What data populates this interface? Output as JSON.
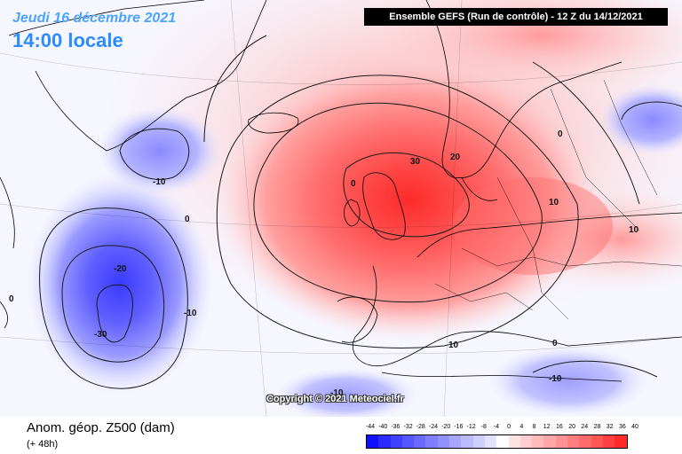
{
  "header": {
    "date": "Jeudi 16 décembre 2021",
    "time": "14:00 locale",
    "model_info": "Ensemble GEFS  (Run de contrôle)  -  12 Z du 14/12/2021"
  },
  "footer": {
    "parameter": "Anom. géop. Z500 (dam)",
    "lead_time": "(+ 48h)",
    "copyright": "Copyright © 2021 Meteociel.fr"
  },
  "legend": {
    "ticks": [
      "-44",
      "-40",
      "-36",
      "-32",
      "-28",
      "-24",
      "-20",
      "-16",
      "-12",
      "-8",
      "-4",
      "0",
      "4",
      "8",
      "12",
      "16",
      "20",
      "24",
      "28",
      "32",
      "36",
      "40"
    ],
    "colors": [
      "#1010ff",
      "#2a2aff",
      "#4040ff",
      "#5656ff",
      "#6a6aff",
      "#7e7eff",
      "#9292ff",
      "#a6a6ff",
      "#babaff",
      "#ceceff",
      "#e2e2ff",
      "#ffffff",
      "#ffe2e2",
      "#ffcece",
      "#ffbaba",
      "#ffa6a6",
      "#ff9292",
      "#ff7e7e",
      "#ff6a6a",
      "#ff5656",
      "#ff4040",
      "#ff2a2a"
    ]
  },
  "contour_labels": [
    "30",
    "20",
    "10",
    "0",
    "-10",
    "-20",
    "-30",
    "10",
    "0",
    "-10",
    "10",
    "0",
    "-10",
    "-10",
    "0",
    "0"
  ]
}
